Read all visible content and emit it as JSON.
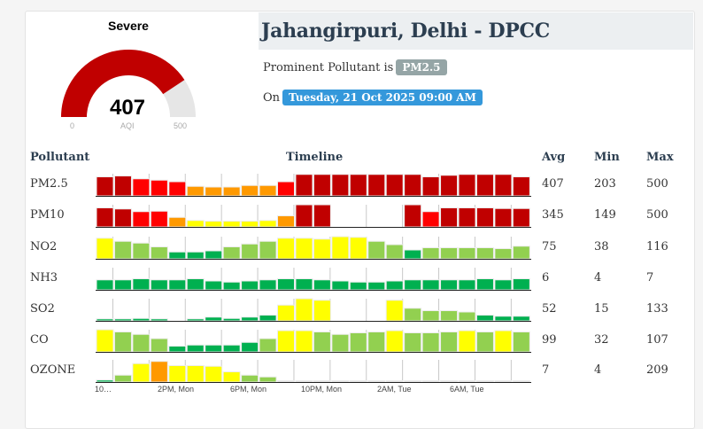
{
  "gauge": {
    "category": "Severe",
    "value": "407",
    "value_num": 407,
    "min": "0",
    "max": "500",
    "label": "AQI",
    "color": "#c00000"
  },
  "station": {
    "title": "Jahangirpuri, Delhi - DPCC",
    "prominent_prefix": "Prominent Pollutant is",
    "prominent": "PM2.5",
    "on_prefix": "On",
    "datetime": "Tuesday, 21 Oct 2025 09:00 AM"
  },
  "colors": {
    "dr": "#c00000",
    "r": "#ff0000",
    "o": "#ff9900",
    "y": "#ffff00",
    "lg": "#92d050",
    "g": "#00b050",
    "x": "#dddddd",
    "badge_grey": "#95a5a6",
    "badge_blue": "#3498db"
  },
  "headers": {
    "pollutant": "Pollutant",
    "timeline": "Timeline",
    "avg": "Avg",
    "min": "Min",
    "max": "Max"
  },
  "rows": [
    {
      "name": "PM2.5",
      "avg": "407",
      "min": "203",
      "max": "500",
      "levels": [
        0.86,
        0.9,
        0.77,
        0.71,
        0.64,
        0.43,
        0.4,
        0.4,
        0.47,
        0.47,
        0.64,
        0.97,
        0.97,
        0.97,
        0.97,
        0.97,
        0.97,
        0.97,
        0.86,
        0.93,
        0.97,
        0.97,
        0.97,
        0.86
      ],
      "cats": [
        "dr",
        "dr",
        "r",
        "r",
        "r",
        "o",
        "o",
        "o",
        "o",
        "o",
        "r",
        "dr",
        "dr",
        "dr",
        "dr",
        "dr",
        "dr",
        "dr",
        "dr",
        "dr",
        "dr",
        "dr",
        "dr",
        "dr"
      ]
    },
    {
      "name": "PM10",
      "avg": "345",
      "min": "149",
      "max": "500",
      "levels": [
        0.86,
        0.81,
        0.69,
        0.71,
        0.43,
        0.29,
        0.26,
        0.26,
        0.26,
        0.29,
        0.5,
        1,
        1,
        0,
        0,
        0,
        0,
        1,
        0.69,
        0.86,
        0.86,
        0.86,
        0.83,
        0.83
      ],
      "cats": [
        "dr",
        "dr",
        "r",
        "r",
        "o",
        "y",
        "y",
        "y",
        "y",
        "y",
        "o",
        "dr",
        "dr",
        "x",
        "x",
        "x",
        "x",
        "dr",
        "r",
        "dr",
        "dr",
        "dr",
        "dr",
        "dr"
      ]
    },
    {
      "name": "NO2",
      "avg": "75",
      "min": "38",
      "max": "116",
      "levels": [
        0.93,
        0.79,
        0.71,
        0.54,
        0.31,
        0.31,
        0.36,
        0.54,
        0.67,
        0.79,
        0.93,
        0.93,
        0.89,
        1,
        0.97,
        0.79,
        0.64,
        0.4,
        0.5,
        0.5,
        0.5,
        0.5,
        0.46,
        0.57
      ],
      "cats": [
        "y",
        "lg",
        "lg",
        "lg",
        "g",
        "g",
        "g",
        "lg",
        "lg",
        "lg",
        "y",
        "y",
        "y",
        "y",
        "y",
        "lg",
        "lg",
        "g",
        "lg",
        "lg",
        "lg",
        "lg",
        "lg",
        "lg"
      ]
    },
    {
      "name": "NH3",
      "avg": "6",
      "min": "4",
      "max": "7",
      "levels": [
        0.45,
        0.45,
        0.5,
        0.45,
        0.45,
        0.5,
        0.4,
        0.35,
        0.4,
        0.45,
        0.5,
        0.5,
        0.45,
        0.4,
        0.35,
        0.35,
        0.4,
        0.45,
        0.45,
        0.45,
        0.45,
        0.5,
        0.45,
        0.5
      ],
      "cats": [
        "g",
        "g",
        "g",
        "g",
        "g",
        "g",
        "g",
        "g",
        "g",
        "g",
        "g",
        "g",
        "g",
        "g",
        "g",
        "g",
        "g",
        "g",
        "g",
        "g",
        "g",
        "g",
        "g",
        "g"
      ]
    },
    {
      "name": "SO2",
      "avg": "52",
      "min": "15",
      "max": "133",
      "levels": [
        0.09,
        0.09,
        0.11,
        0.09,
        0,
        0.09,
        0.17,
        0.11,
        0.17,
        0.26,
        0.71,
        1,
        0.93,
        0,
        0,
        0,
        0.93,
        0.57,
        0.46,
        0.46,
        0.4,
        0.26,
        0.21,
        0.21
      ],
      "cats": [
        "g",
        "g",
        "g",
        "g",
        "x",
        "g",
        "g",
        "g",
        "g",
        "g",
        "y",
        "y",
        "y",
        "x",
        "x",
        "x",
        "y",
        "lg",
        "lg",
        "lg",
        "lg",
        "g",
        "g",
        "g"
      ]
    },
    {
      "name": "CO",
      "avg": "99",
      "min": "32",
      "max": "107",
      "levels": [
        1,
        0.9,
        0.79,
        0.6,
        0.26,
        0.31,
        0.31,
        0.31,
        0.43,
        0.6,
        0.96,
        0.96,
        0.9,
        0.79,
        0.86,
        0.9,
        0.96,
        0.86,
        0.86,
        0.9,
        0.96,
        0.9,
        0.96,
        0.9
      ],
      "cats": [
        "y",
        "lg",
        "lg",
        "lg",
        "g",
        "g",
        "g",
        "g",
        "g",
        "lg",
        "y",
        "y",
        "lg",
        "lg",
        "lg",
        "lg",
        "y",
        "lg",
        "lg",
        "lg",
        "y",
        "lg",
        "y",
        "lg"
      ]
    },
    {
      "name": "OZONE",
      "avg": "7",
      "min": "4",
      "max": "209",
      "levels": [
        0.09,
        0.31,
        0.83,
        0.93,
        0.74,
        0.74,
        0.71,
        0.46,
        0.31,
        0.23,
        0.04,
        0.02,
        0.02,
        0.02,
        0.02,
        0.02,
        0.02,
        0.02,
        0.02,
        0.02,
        0.02,
        0.02,
        0.02,
        0.03
      ],
      "cats": [
        "g",
        "lg",
        "y",
        "o",
        "y",
        "y",
        "y",
        "y",
        "lg",
        "lg",
        "x",
        "x",
        "x",
        "x",
        "x",
        "x",
        "x",
        "x",
        "x",
        "x",
        "x",
        "x",
        "x",
        "x"
      ]
    }
  ],
  "xaxis": [
    "10…",
    "2PM, Mon",
    "6PM, Mon",
    "10PM, Mon",
    "2AM, Tue",
    "6AM, Tue"
  ]
}
